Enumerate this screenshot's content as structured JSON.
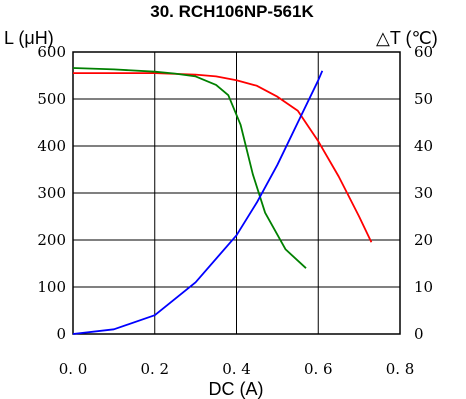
{
  "chart_data": {
    "type": "line",
    "title": "30. RCH106NP-561K",
    "xlabel": "DC (A)",
    "ylabel_left": "L (μH)",
    "ylabel_right": "△T (℃)",
    "xlim": [
      0,
      0.8
    ],
    "ylim_left": [
      0,
      600
    ],
    "ylim_right": [
      0,
      60
    ],
    "x_ticks": [
      "0. 0",
      "0. 2",
      "0. 4",
      "0. 6",
      "0. 8"
    ],
    "x_tick_values": [
      0,
      0.2,
      0.4,
      0.6,
      0.8
    ],
    "y_ticks_left": [
      "0",
      "100",
      "200",
      "300",
      "400",
      "500",
      "600"
    ],
    "y_tick_values_left": [
      0,
      100,
      200,
      300,
      400,
      500,
      600
    ],
    "y_ticks_right": [
      "0",
      "10",
      "20",
      "30",
      "40",
      "50",
      "60"
    ],
    "y_tick_values_right": [
      0,
      10,
      20,
      30,
      40,
      50,
      60
    ],
    "grid": true,
    "series": [
      {
        "color": "#ff0000",
        "axis": "left",
        "x": [
          0,
          0.1,
          0.2,
          0.3,
          0.35,
          0.4,
          0.45,
          0.5,
          0.55,
          0.6,
          0.65,
          0.7,
          0.73
        ],
        "y": [
          555,
          555,
          555,
          552,
          548,
          540,
          528,
          505,
          475,
          410,
          335,
          250,
          195
        ]
      },
      {
        "color": "#008000",
        "axis": "left",
        "x": [
          0,
          0.1,
          0.2,
          0.25,
          0.3,
          0.35,
          0.38,
          0.41,
          0.44,
          0.47,
          0.52,
          0.57
        ],
        "y": [
          566,
          563,
          558,
          554,
          548,
          530,
          508,
          445,
          340,
          258,
          180,
          140
        ]
      },
      {
        "color": "#0000ff",
        "axis": "right",
        "x": [
          0,
          0.1,
          0.2,
          0.3,
          0.4,
          0.45,
          0.5,
          0.55,
          0.6,
          0.61
        ],
        "y": [
          0,
          1,
          4,
          11,
          21,
          28,
          36,
          45,
          54,
          56
        ]
      }
    ]
  }
}
